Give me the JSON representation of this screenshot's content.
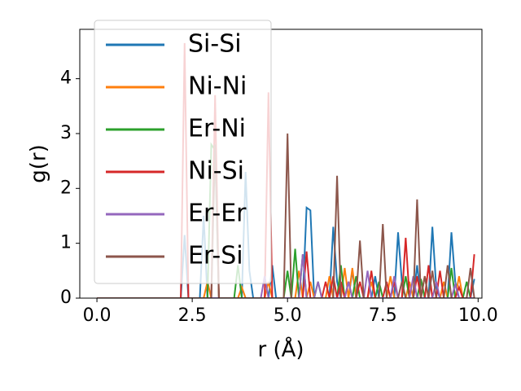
{
  "chart_data": {
    "type": "line",
    "xlabel": "r (Å)",
    "ylabel": "g(r)",
    "x": [
      0,
      0.1,
      0.2,
      0.3,
      0.4,
      0.5,
      0.6,
      0.7,
      0.8,
      0.9,
      1,
      1.1,
      1.2,
      1.3,
      1.4,
      1.5,
      1.6,
      1.7,
      1.8,
      1.9,
      2,
      2.1,
      2.2,
      2.3,
      2.4,
      2.5,
      2.6,
      2.7,
      2.8,
      2.9,
      3,
      3.1,
      3.2,
      3.3,
      3.4,
      3.5,
      3.6,
      3.7,
      3.8,
      3.9,
      4,
      4.1,
      4.2,
      4.3,
      4.4,
      4.5,
      4.6,
      4.7,
      4.8,
      4.9,
      5,
      5.1,
      5.2,
      5.3,
      5.4,
      5.5,
      5.6,
      5.7,
      5.8,
      5.9,
      6,
      6.1,
      6.2,
      6.3,
      6.4,
      6.5,
      6.6,
      6.7,
      6.8,
      6.9,
      7,
      7.1,
      7.2,
      7.3,
      7.4,
      7.5,
      7.6,
      7.7,
      7.8,
      7.9,
      8,
      8.1,
      8.2,
      8.3,
      8.4,
      8.5,
      8.6,
      8.7,
      8.8,
      8.9,
      9,
      9.1,
      9.2,
      9.3,
      9.4,
      9.5,
      9.6,
      9.7,
      9.8,
      9.9
    ],
    "series": [
      {
        "name": "Si-Si",
        "color": "#1f77b4",
        "values": [
          0,
          0,
          0,
          0,
          0,
          0,
          0,
          0,
          0,
          0,
          0,
          0,
          0,
          0,
          0,
          0,
          0,
          0,
          0,
          0,
          0,
          0,
          0,
          1.15,
          0,
          0,
          0,
          0,
          1.5,
          0,
          0,
          0,
          0,
          0,
          0,
          0,
          0,
          0,
          0,
          2.3,
          0.5,
          0,
          0,
          0,
          0,
          0,
          0.6,
          0,
          0,
          0,
          0,
          0,
          0,
          0,
          0,
          1.65,
          1.6,
          0,
          0,
          0,
          0,
          0,
          1.3,
          0.3,
          0,
          0,
          0,
          0.5,
          0,
          0,
          0,
          0,
          0,
          0.4,
          0,
          0,
          0,
          0,
          0,
          1.2,
          0.3,
          0,
          0,
          0,
          0.6,
          0,
          0,
          0,
          1.3,
          0.2,
          0,
          0,
          0,
          1.2,
          0.3,
          0,
          0,
          0,
          0,
          0.35
        ]
      },
      {
        "name": "Ni-Ni",
        "color": "#ff7f0e",
        "values": [
          0,
          0,
          0,
          0,
          0,
          0,
          0,
          0,
          0,
          0,
          0,
          0,
          0,
          0,
          0,
          0,
          0,
          0,
          0,
          0,
          0,
          0,
          0,
          0,
          0,
          0,
          0,
          0,
          0,
          0.3,
          0,
          0,
          0,
          0,
          0,
          0,
          0,
          0,
          0.2,
          0,
          0,
          0,
          0,
          0,
          0,
          0.3,
          0,
          0,
          0,
          0,
          0,
          0,
          0,
          0.5,
          0,
          0,
          0.3,
          0,
          0,
          0,
          0,
          0.4,
          0,
          0,
          0,
          0.55,
          0,
          0.55,
          0,
          0,
          0,
          0,
          0.3,
          0,
          0,
          0,
          0,
          0.4,
          0,
          0,
          0,
          0,
          0.3,
          0,
          0,
          0,
          0.4,
          0,
          0,
          0,
          0,
          0.3,
          0,
          0,
          0,
          0.4,
          0,
          0,
          0,
          0
        ]
      },
      {
        "name": "Er-Ni",
        "color": "#2ca02c",
        "values": [
          0,
          0,
          0,
          0,
          0,
          0,
          0,
          0,
          0,
          0,
          0,
          0,
          0,
          0,
          0,
          0,
          0,
          0,
          0,
          0,
          0,
          0,
          0,
          0,
          0,
          0,
          0,
          0,
          0,
          0,
          2.8,
          2.7,
          0,
          0,
          0,
          0,
          0,
          0.6,
          0,
          0,
          0,
          0,
          0,
          0,
          0,
          0,
          0,
          0,
          0,
          0,
          0.5,
          0,
          0.9,
          0,
          0.8,
          0,
          0,
          0,
          0.3,
          0,
          0,
          0,
          0,
          0,
          0.6,
          0,
          0,
          0,
          0.4,
          0,
          0,
          0,
          0,
          0,
          0.3,
          0,
          0,
          0,
          0,
          0,
          0,
          0.4,
          0,
          0,
          0,
          0.35,
          0,
          0,
          0,
          0,
          0,
          0,
          0,
          0.55,
          0,
          0,
          0,
          0.3,
          0,
          0
        ]
      },
      {
        "name": "Ni-Si",
        "color": "#d62728",
        "values": [
          0,
          0,
          0,
          0,
          0,
          0,
          0,
          0,
          0,
          0,
          0,
          0,
          0,
          0,
          0,
          0,
          0,
          0,
          0,
          0,
          0,
          0,
          0,
          4.65,
          0,
          0,
          0,
          0,
          0,
          0,
          0,
          3.7,
          0,
          0,
          0,
          0,
          0,
          0,
          0,
          0,
          0,
          0,
          0,
          0,
          0,
          3.75,
          0,
          0,
          0,
          0,
          0,
          0,
          0,
          0,
          0,
          0.85,
          0,
          0,
          0,
          0,
          0.3,
          0,
          0.4,
          0,
          0.3,
          0,
          0.3,
          0,
          0,
          0.3,
          0,
          0,
          0.5,
          0,
          0,
          0,
          0.3,
          0,
          0.3,
          0,
          0,
          1.1,
          0,
          0,
          0.4,
          0,
          0,
          0.6,
          0,
          0,
          0.5,
          0,
          0,
          0,
          0,
          0.2,
          0,
          0,
          0,
          0.8
        ]
      },
      {
        "name": "Er-Er",
        "color": "#9467bd",
        "values": [
          0,
          0,
          0,
          0,
          0,
          0,
          0,
          0,
          0,
          0,
          0,
          0,
          0,
          0,
          0,
          0,
          0,
          0,
          0,
          0,
          0,
          0,
          0,
          0,
          0,
          0,
          0,
          0,
          0,
          0,
          0,
          0,
          0,
          0,
          0,
          0,
          0,
          0,
          0,
          0,
          0,
          0,
          0,
          0,
          0.4,
          0,
          0,
          0,
          0,
          0,
          0,
          0,
          0,
          0,
          0.8,
          0,
          0,
          0,
          0.3,
          0,
          0,
          0,
          0,
          0,
          0,
          0,
          0.3,
          0,
          0,
          0,
          0,
          0.5,
          0,
          0,
          0,
          0,
          0,
          0,
          0.4,
          0,
          0,
          0,
          0,
          0.4,
          0,
          0,
          0,
          0,
          0,
          0.3,
          0,
          0,
          0,
          0,
          0.25,
          0,
          0,
          0,
          0,
          0
        ]
      },
      {
        "name": "Er-Si",
        "color": "#8c564b",
        "values": [
          0,
          0,
          0,
          0,
          0,
          0,
          0,
          0,
          0,
          0,
          0,
          0,
          0,
          0,
          0,
          0,
          0,
          0,
          0,
          0,
          0,
          0,
          0,
          0,
          0,
          0,
          0,
          0,
          0,
          0,
          0,
          2.8,
          0,
          0,
          0,
          0,
          0,
          0,
          0,
          0,
          0,
          0,
          0,
          0,
          0,
          0,
          0,
          0,
          0,
          0,
          3.0,
          0,
          0,
          0,
          0,
          0,
          0,
          0,
          0,
          0,
          0,
          0,
          0,
          2.23,
          0,
          0,
          0,
          0,
          0,
          1.05,
          0,
          0,
          0,
          0,
          0,
          1.35,
          0,
          0,
          0,
          0,
          0.3,
          0,
          0,
          0,
          1.8,
          0,
          0.4,
          0,
          0.5,
          0,
          0,
          0,
          0.6,
          0,
          0,
          0,
          0,
          0,
          0.55,
          0
        ]
      }
    ],
    "xlim": [
      -0.45,
      10.1
    ],
    "xticks": [
      {
        "value": 0,
        "label": "0.0"
      },
      2.5,
      {
        "value": 5,
        "label": "5.0"
      },
      7.5,
      {
        "value": 10,
        "label": "10.0"
      }
    ],
    "ylim": [
      0,
      4.9
    ],
    "yticks": [
      0,
      1,
      2,
      3,
      4
    ],
    "legend": "upper left"
  }
}
